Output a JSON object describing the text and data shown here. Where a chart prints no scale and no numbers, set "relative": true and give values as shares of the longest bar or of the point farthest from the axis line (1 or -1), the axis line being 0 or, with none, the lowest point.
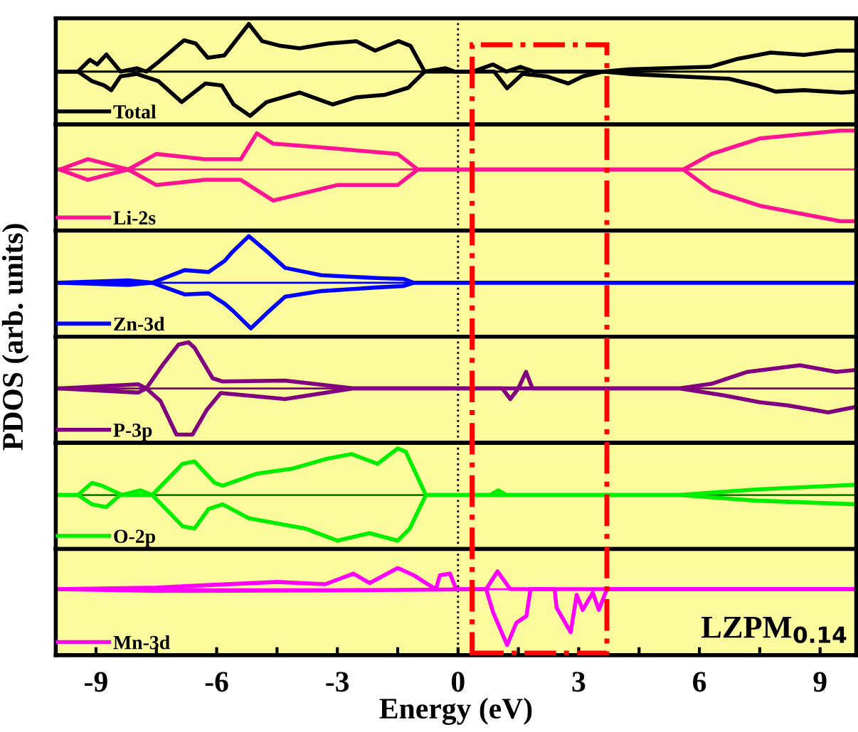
{
  "chart_data": [
    {
      "type": "line",
      "relative": true,
      "ylabel": "PDOS (arb. units)",
      "xlim": [
        -10,
        9.9
      ],
      "tick_labels": false,
      "legend": "bottom left",
      "grid": false,
      "series": [
        {
          "name": "Total",
          "color": "#000000",
          "x": [
            -9.9,
            -9.45,
            -9.15,
            -8.97,
            -8.74,
            -8.39,
            -7.98,
            -7.75,
            -7.45,
            -6.81,
            -6.52,
            -6.22,
            -5.81,
            -5.58,
            -5.2,
            -4.87,
            -4.41,
            -3.94,
            -3.23,
            -2.53,
            -2.06,
            -1.48,
            -1.18,
            -0.83,
            -0.31,
            -0.07,
            0.36,
            0.87,
            1.2,
            1.55,
            1.9,
            3.6,
            4.25,
            6.26,
            6.96,
            7.77,
            8.6,
            9.42,
            9.9
          ],
          "values": [
            0,
            0,
            0.25,
            0.15,
            0.36,
            0,
            0.07,
            0,
            0.2,
            0.66,
            0.59,
            0.29,
            0.34,
            0.59,
            1.0,
            0.64,
            0.54,
            0.49,
            0.59,
            0.64,
            0.44,
            0.64,
            0.54,
            0,
            0.07,
            0,
            0,
            0.15,
            0,
            0.1,
            0,
            0,
            0.05,
            0.1,
            0.27,
            0.4,
            0.35,
            0.44,
            0.44
          ]
        },
        {
          "color": "#000000",
          "x": [
            -9.9,
            -9.45,
            -9.1,
            -8.8,
            -8.62,
            -8.39,
            -7.98,
            -7.45,
            -6.87,
            -6.28,
            -5.87,
            -5.58,
            -5.17,
            -4.76,
            -3.94,
            -3.12,
            -2.53,
            -1.83,
            -1.24,
            -0.83,
            0.36,
            0.9,
            1.22,
            1.6,
            2.2,
            2.74,
            3.1,
            3.6,
            4.25,
            6.73,
            7.42,
            7.89,
            8.6,
            9.54,
            9.9
          ],
          "values": [
            0,
            0,
            -0.2,
            -0.29,
            -0.39,
            -0.1,
            -0.05,
            -0.2,
            -0.64,
            -0.25,
            -0.29,
            -0.69,
            -0.93,
            -0.64,
            -0.44,
            -0.69,
            -0.54,
            -0.49,
            -0.34,
            0,
            0,
            0,
            -0.35,
            -0.05,
            -0.1,
            -0.25,
            -0.1,
            0,
            -0.05,
            -0.15,
            -0.29,
            -0.42,
            -0.39,
            -0.44,
            -0.42
          ]
        }
      ],
      "ref_lines": [
        {
          "axis": "x",
          "value": 0,
          "color": "#000000",
          "line_style": "dotted"
        },
        {
          "axis": "y",
          "value": 0,
          "color": "#000000"
        }
      ]
    },
    {
      "type": "line",
      "relative": true,
      "xlim": [
        -10,
        9.9
      ],
      "tick_labels": false,
      "legend": "bottom left",
      "grid": false,
      "series": [
        {
          "name": "Li-2s",
          "color": "#ff1493",
          "x": [
            -9.9,
            -9.2,
            -8.2,
            -7.5,
            -6.3,
            -5.4,
            -5.0,
            -4.6,
            -3.0,
            -1.5,
            -1.0,
            5.6,
            6.3,
            7.5,
            9.5,
            9.9
          ],
          "values": [
            0,
            0.2,
            0,
            0.3,
            0.2,
            0.2,
            0.7,
            0.5,
            0.4,
            0.3,
            0,
            0,
            0.3,
            0.6,
            0.75,
            0.75
          ]
        },
        {
          "color": "#ff1493",
          "x": [
            -9.9,
            -9.2,
            -8.2,
            -7.5,
            -6.3,
            -5.4,
            -5.0,
            -4.6,
            -3.0,
            -1.5,
            -1.0,
            5.6,
            6.3,
            7.5,
            9.5,
            9.9
          ],
          "values": [
            0,
            -0.2,
            0,
            -0.3,
            -0.2,
            -0.2,
            -0.4,
            -0.6,
            -0.3,
            -0.3,
            0,
            0,
            -0.4,
            -0.7,
            -1.0,
            -1.0
          ]
        }
      ],
      "ref_lines": [
        {
          "axis": "x",
          "value": 0,
          "color": "#000000",
          "line_style": "dotted"
        },
        {
          "axis": "y",
          "value": 0,
          "color": "#ff1493"
        }
      ]
    },
    {
      "type": "line",
      "relative": true,
      "xlim": [
        -10,
        9.9
      ],
      "tick_labels": false,
      "legend": "bottom left",
      "grid": false,
      "series": [
        {
          "name": "Zn-3d",
          "color": "#0000ff",
          "x": [
            -9.9,
            -8.2,
            -7.6,
            -6.8,
            -6.2,
            -5.8,
            -5.6,
            -5.2,
            -4.75,
            -4.3,
            -3.4,
            -2.0,
            -1.35,
            -1.1,
            9.9
          ],
          "values": [
            0,
            0.05,
            0,
            0.27,
            0.23,
            0.47,
            0.67,
            1.0,
            0.67,
            0.32,
            0.16,
            0.1,
            0.08,
            0,
            0
          ]
        },
        {
          "color": "#0000ff",
          "x": [
            -9.9,
            -8.2,
            -7.6,
            -6.8,
            -6.2,
            -5.8,
            -5.6,
            -5.15,
            -4.75,
            -4.3,
            -3.4,
            -2.0,
            -1.35,
            -1.1,
            9.9
          ],
          "values": [
            0,
            -0.05,
            0,
            -0.25,
            -0.23,
            -0.45,
            -0.6,
            -0.98,
            -0.65,
            -0.3,
            -0.18,
            -0.1,
            -0.07,
            0,
            0
          ]
        }
      ],
      "ref_lines": [
        {
          "axis": "x",
          "value": 0,
          "color": "#000000",
          "line_style": "dotted"
        },
        {
          "axis": "y",
          "value": 0,
          "color": "#0000ff"
        }
      ]
    },
    {
      "type": "line",
      "relative": true,
      "xlim": [
        -10,
        9.9
      ],
      "tick_labels": false,
      "legend": "bottom left",
      "grid": false,
      "series": [
        {
          "name": "P-3p",
          "color": "#800080",
          "x": [
            -9.9,
            -7.95,
            -7.75,
            -7.35,
            -6.95,
            -6.7,
            -6.55,
            -6.1,
            -5.85,
            -4.3,
            -2.6,
            1.5,
            1.69,
            1.85,
            5.5,
            6.3,
            7.2,
            8.5,
            9.4,
            9.9
          ],
          "values": [
            0,
            0.09,
            0,
            0.5,
            0.95,
            1.0,
            0.88,
            0.22,
            0.15,
            0.17,
            0,
            0,
            0.36,
            0,
            0,
            0.1,
            0.36,
            0.5,
            0.36,
            0.4
          ]
        },
        {
          "color": "#800080",
          "x": [
            -9.9,
            -7.95,
            -7.75,
            -7.4,
            -7.0,
            -6.6,
            -6.25,
            -5.9,
            -4.3,
            -2.6,
            1.1,
            1.3,
            1.5,
            5.5,
            6.6,
            7.5,
            8.2,
            9.2,
            9.9
          ],
          "values": [
            0,
            -0.09,
            0,
            -0.27,
            -1.0,
            -1.0,
            -0.47,
            -0.1,
            -0.23,
            0,
            0,
            -0.23,
            0,
            0,
            -0.15,
            -0.3,
            -0.37,
            -0.52,
            -0.4
          ]
        }
      ],
      "ref_lines": [
        {
          "axis": "x",
          "value": 0,
          "color": "#000000",
          "line_style": "dotted"
        },
        {
          "axis": "y",
          "value": 0,
          "color": "#800080"
        }
      ]
    },
    {
      "type": "line",
      "relative": true,
      "xlim": [
        -10,
        9.9
      ],
      "tick_labels": false,
      "legend": "bottom left",
      "grid": false,
      "series": [
        {
          "name": "O-2p",
          "color": "#00ee00",
          "x": [
            -9.9,
            -9.45,
            -9.1,
            -8.85,
            -8.6,
            -8.35,
            -7.9,
            -7.6,
            -6.85,
            -6.55,
            -6.05,
            -5.85,
            -5.0,
            -4.1,
            -3.3,
            -2.65,
            -2.0,
            -1.5,
            -1.3,
            -0.8,
            0.8,
            1.0,
            1.2,
            5.5,
            7.4,
            9.9
          ],
          "values": [
            0,
            0,
            0.26,
            0.2,
            0.1,
            0,
            0.1,
            0,
            0.67,
            0.72,
            0.26,
            0.2,
            0.46,
            0.57,
            0.77,
            0.88,
            0.67,
            1.0,
            0.93,
            0,
            0,
            0.1,
            0,
            0,
            0.12,
            0.22
          ]
        },
        {
          "color": "#00ee00",
          "x": [
            -9.9,
            -9.45,
            -9.1,
            -8.75,
            -8.4,
            -7.6,
            -6.85,
            -6.55,
            -6.2,
            -5.85,
            -5.2,
            -3.8,
            -3.0,
            -2.2,
            -1.5,
            -1.2,
            -0.8,
            5.5,
            7.4,
            9.9
          ],
          "values": [
            0,
            0,
            -0.2,
            -0.26,
            0,
            0,
            -0.67,
            -0.72,
            -0.3,
            -0.2,
            -0.5,
            -0.72,
            -0.98,
            -0.82,
            -0.98,
            -0.72,
            0,
            0,
            -0.12,
            -0.2
          ]
        }
      ],
      "ref_lines": [
        {
          "axis": "x",
          "value": 0,
          "color": "#000000",
          "line_style": "dotted"
        },
        {
          "axis": "y",
          "value": 0,
          "color": "#008800"
        }
      ]
    },
    {
      "type": "line",
      "relative": true,
      "xlabel": "Energy (eV)",
      "xlim": [
        -10,
        9.9
      ],
      "tick_labels": "x",
      "legend": "bottom left",
      "grid": false,
      "xticks": [
        -9,
        {
          "value": -7.5,
          "label": null
        },
        -6,
        {
          "value": -4.5,
          "label": null
        },
        -3,
        {
          "value": -1.5,
          "label": null
        },
        0,
        {
          "value": 1.5,
          "label": null
        },
        3,
        {
          "value": 4.5,
          "label": null
        },
        6,
        {
          "value": 7.5,
          "label": null
        },
        9
      ],
      "annotations": [
        "LZPM$_{0.14}$"
      ],
      "series": [
        {
          "name": "Mn-3d",
          "color": "#ff00ff",
          "x": [
            -9.9,
            -7.5,
            -4.5,
            -3.3,
            -2.6,
            -2.2,
            -1.5,
            -1.1,
            -0.8,
            -0.55,
            -0.45,
            -0.2,
            -0.05,
            0.7,
            0.98,
            1.3,
            9.9
          ],
          "values": [
            0,
            0.03,
            0.13,
            0.09,
            0.28,
            0.11,
            0.38,
            0.25,
            0.11,
            0,
            0.25,
            0.28,
            0,
            0,
            0.32,
            0,
            0
          ]
        },
        {
          "color": "#ff00ff",
          "x": [
            -9.9,
            -7.5,
            -3.0,
            0.7,
            0.87,
            1.22,
            1.45,
            1.7,
            1.8,
            2.4,
            2.45,
            2.8,
            2.95,
            3.1,
            3.35,
            3.5,
            3.7,
            9.9
          ],
          "values": [
            0,
            -0.03,
            -0.02,
            0,
            -0.41,
            -1.0,
            -0.6,
            -0.48,
            0,
            0,
            -0.33,
            -0.77,
            -0.1,
            -0.37,
            -0.06,
            -0.37,
            0,
            0
          ]
        }
      ],
      "ref_lines": [
        {
          "axis": "x",
          "value": 0,
          "color": "#000000",
          "line_style": "dotted"
        },
        {
          "axis": "y",
          "value": 0,
          "color": "#ff00ff"
        }
      ]
    }
  ]
}
